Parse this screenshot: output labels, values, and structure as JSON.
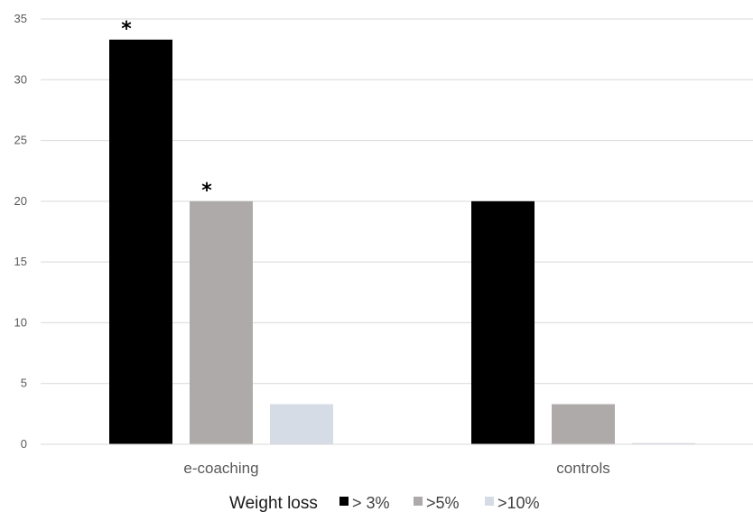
{
  "chart_data": {
    "type": "bar",
    "categories": [
      "e-coaching",
      "controls"
    ],
    "series": [
      {
        "name": "> 3%",
        "values": [
          33.3,
          20
        ],
        "color": "#000000"
      },
      {
        "name": ">5%",
        "values": [
          20,
          3.3
        ],
        "color": "#aeaaaa"
      },
      {
        "name": ">10%",
        "values": [
          3.3,
          0.1
        ],
        "color": "#d6dce5"
      }
    ],
    "ylim": [
      0,
      35
    ],
    "yticks": [
      0,
      5,
      10,
      15,
      20,
      25,
      30,
      35
    ],
    "grid": true,
    "legend": {
      "title": "Weight loss",
      "placement": "bottom"
    },
    "annotations": [
      {
        "text": "*",
        "category": "e-coaching",
        "series": "> 3%"
      },
      {
        "text": "*",
        "category": "e-coaching",
        "series": ">5%"
      }
    ]
  }
}
